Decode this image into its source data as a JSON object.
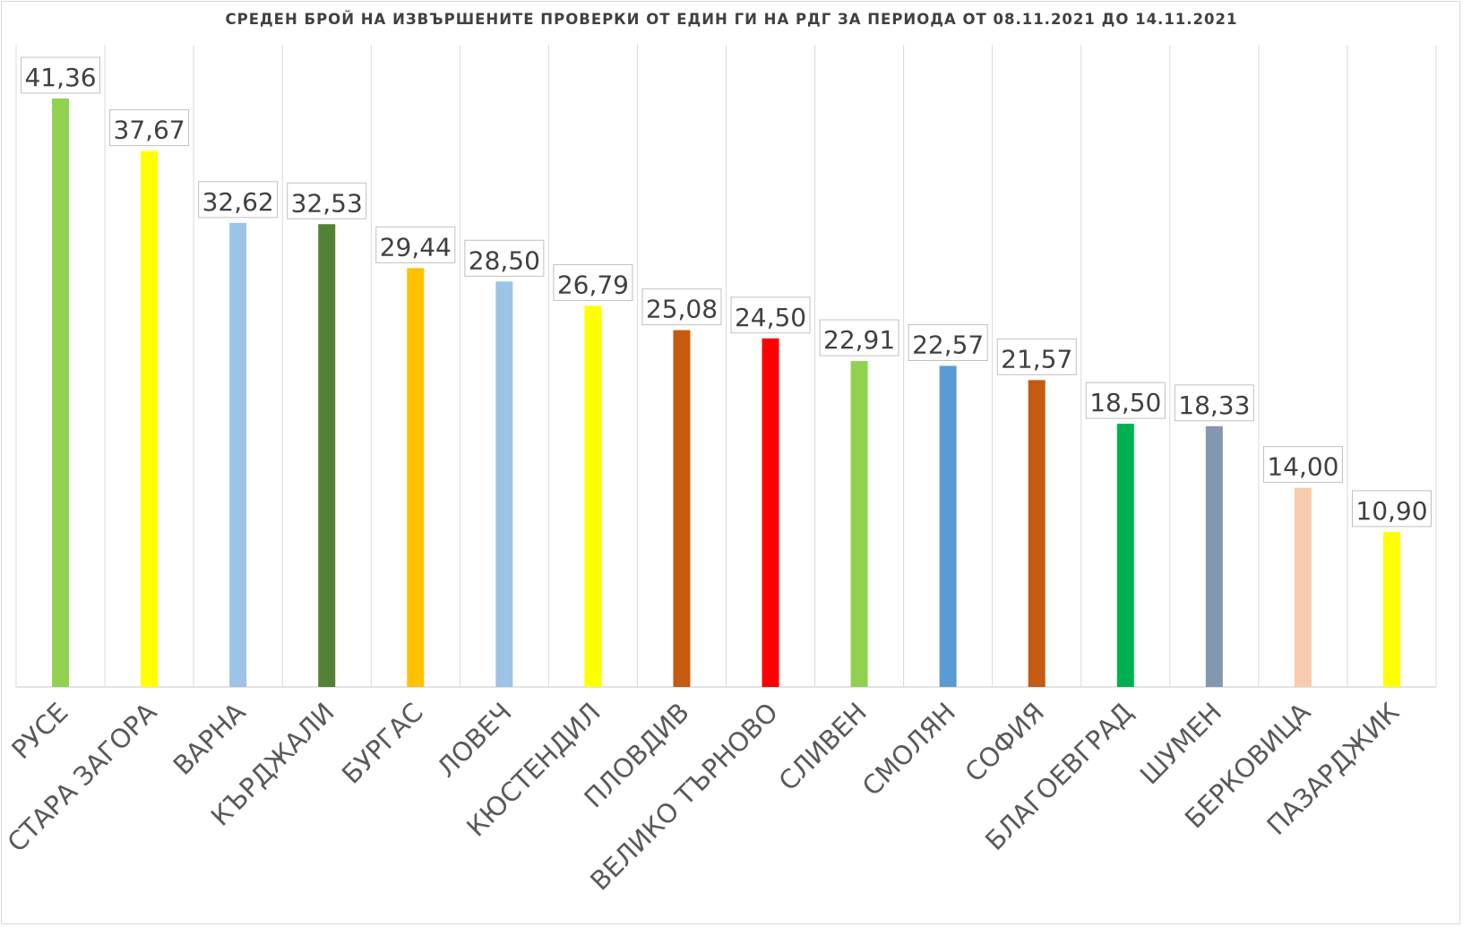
{
  "chart_data": {
    "type": "bar",
    "title": "СРЕДЕН БРОЙ НА ИЗВЪРШЕНИТЕ ПРОВЕРКИ ОТ ЕДИН ГИ НА РДГ ЗА ПЕРИОДА ОТ 08.11.2021 ДО 14.11.2021",
    "categories": [
      "РУСЕ",
      "СТАРА ЗАГОРА",
      "ВАРНА",
      "КЪРДЖАЛИ",
      "БУРГАС",
      "ЛОВЕЧ",
      "КЮСТЕНДИЛ",
      "ПЛОВДИВ",
      "ВЕЛИКО ТЪРНОВО",
      "СЛИВЕН",
      "СМОЛЯН",
      "СОФИЯ",
      "БЛАГОЕВГРАД",
      "ШУМЕН",
      "БЕРКОВИЦА",
      "ПАЗАРДЖИК"
    ],
    "values": [
      41.36,
      37.67,
      32.62,
      32.53,
      29.44,
      28.5,
      26.79,
      25.08,
      24.5,
      22.91,
      22.57,
      21.57,
      18.5,
      18.33,
      14.0,
      10.9
    ],
    "data_labels": [
      "41,36",
      "37,67",
      "32,62",
      "32,53",
      "29,44",
      "28,50",
      "26,79",
      "25,08",
      "24,50",
      "22,91",
      "22,57",
      "21,57",
      "18,50",
      "18,33",
      "14,00",
      "10,90"
    ],
    "colors": [
      "#92d050",
      "#ffff00",
      "#9dc3e6",
      "#548235",
      "#ffc000",
      "#9dc3e6",
      "#ffff00",
      "#c55a11",
      "#ff0000",
      "#92d050",
      "#5b9bd5",
      "#c55a11",
      "#00b050",
      "#8497b0",
      "#f8cbad",
      "#ffff00"
    ],
    "ylim": [
      0,
      41.36
    ],
    "xlabel": "",
    "ylabel": "",
    "grid": "vertical category separators",
    "legend": "none"
  }
}
